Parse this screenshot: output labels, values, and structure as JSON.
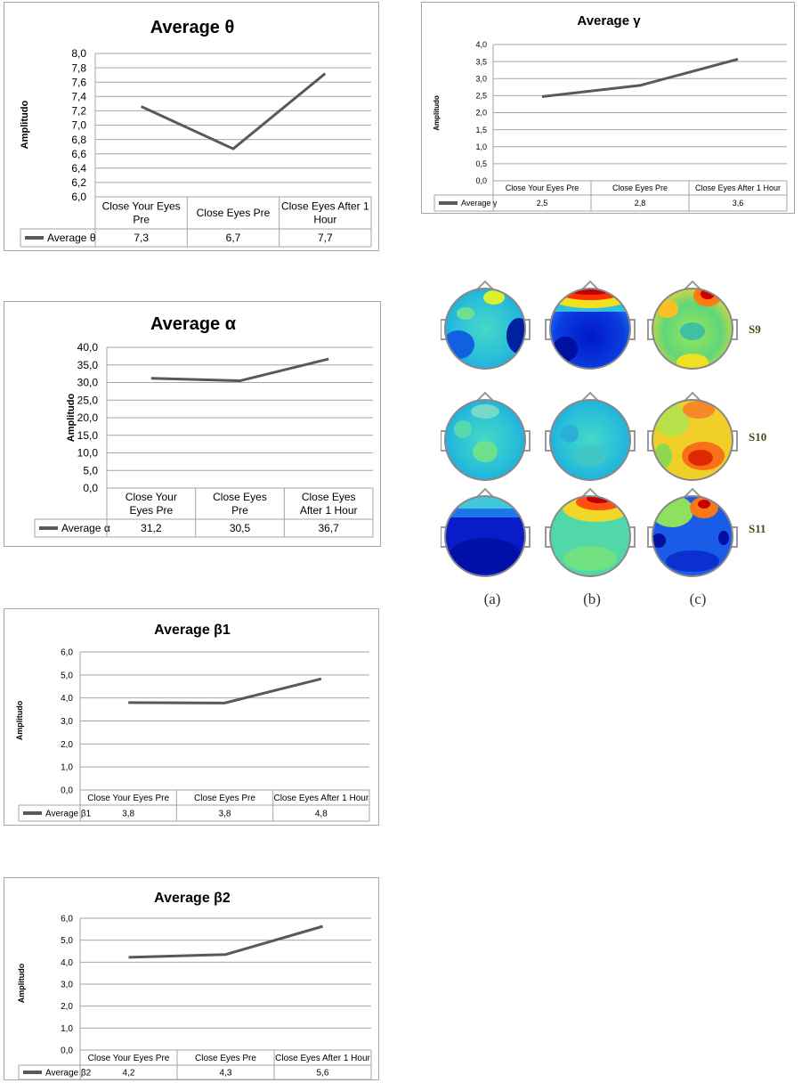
{
  "chart_data": [
    {
      "type": "line",
      "title": "Average θ",
      "ylabel": "Amplitudo",
      "ylim": [
        6.0,
        8.0
      ],
      "yticks": [
        "6,0",
        "6,2",
        "6,4",
        "6,6",
        "6,8",
        "7,0",
        "7,2",
        "7,4",
        "7,6",
        "7,8",
        "8,0"
      ],
      "categories": [
        "Close Your Eyes Pre",
        "Close Eyes Pre",
        "Close Eyes After 1 Hour"
      ],
      "series": [
        {
          "name": "Average θ",
          "values": [
            7.26,
            6.67,
            7.72
          ],
          "labels": [
            "7,3",
            "6,7",
            "7,7"
          ]
        }
      ],
      "grid": true,
      "data_table": true
    },
    {
      "type": "line",
      "title": "Average γ",
      "ylabel": "Amplitudo",
      "ylim": [
        0.0,
        4.0
      ],
      "yticks": [
        "0,0",
        "0,5",
        "1,0",
        "1,5",
        "2,0",
        "2,5",
        "3,0",
        "3,5",
        "4,0"
      ],
      "categories": [
        "Close Your Eyes Pre",
        "Close Eyes Pre",
        "Close Eyes After 1 Hour"
      ],
      "series": [
        {
          "name": "Average γ",
          "values": [
            2.47,
            2.8,
            3.57
          ],
          "labels": [
            "2,5",
            "2,8",
            "3,6"
          ]
        }
      ],
      "grid": true,
      "data_table": true
    },
    {
      "type": "line",
      "title": "Average α",
      "ylabel": "Amplitudo",
      "ylim": [
        0.0,
        40.0
      ],
      "yticks": [
        "0,0",
        "5,0",
        "10,0",
        "15,0",
        "20,0",
        "25,0",
        "30,0",
        "35,0",
        "40,0"
      ],
      "categories": [
        "Close Your Eyes Pre",
        "Close Eyes Pre",
        "Close Eyes After 1 Hour"
      ],
      "series": [
        {
          "name": "Average α",
          "values": [
            31.2,
            30.5,
            36.7
          ],
          "labels": [
            "31,2",
            "30,5",
            "36,7"
          ]
        }
      ],
      "grid": true,
      "data_table": true
    },
    {
      "type": "line",
      "title": "Average β1",
      "ylabel": "Amplitudo",
      "ylim": [
        0.0,
        6.0
      ],
      "yticks": [
        "0,0",
        "1,0",
        "2,0",
        "3,0",
        "4,0",
        "5,0",
        "6,0"
      ],
      "categories": [
        "Close Your Eyes Pre",
        "Close Eyes Pre",
        "Close Eyes After 1 Hour"
      ],
      "series": [
        {
          "name": "Average β1",
          "values": [
            3.8,
            3.78,
            4.83
          ],
          "labels": [
            "3,8",
            "3,8",
            "4,8"
          ]
        }
      ],
      "grid": true,
      "data_table": true
    },
    {
      "type": "line",
      "title": "Average β2",
      "ylabel": "Amplitudo",
      "ylim": [
        0.0,
        6.0
      ],
      "yticks": [
        "0,0",
        "1,0",
        "2,0",
        "3,0",
        "4,0",
        "5,0",
        "6,0"
      ],
      "categories": [
        "Close Your Eyes Pre",
        "Close Eyes Pre",
        "Close Eyes After 1 Hour"
      ],
      "series": [
        {
          "name": "Average β2",
          "values": [
            4.22,
            4.35,
            5.63
          ],
          "labels": [
            "4,2",
            "4,3",
            "5,6"
          ]
        }
      ],
      "grid": true,
      "data_table": true
    }
  ],
  "brain_maps": {
    "rows": [
      "S9",
      "S10",
      "S11"
    ],
    "columns": [
      "(a)",
      "(b)",
      "(c)"
    ]
  },
  "colors": {
    "line": "#595959",
    "grid": "#a6a6a6",
    "label_green": "#4b4b1f"
  }
}
